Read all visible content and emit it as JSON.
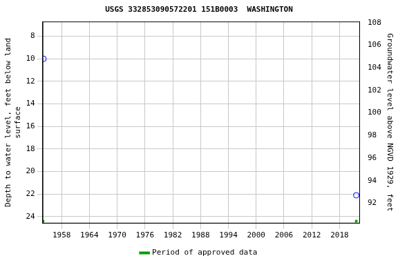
{
  "chart_data": {
    "type": "scatter",
    "title": "USGS 332853090572201 151B0003  WASHINGTON",
    "x_label": "",
    "y_label": [
      "Depth to water level, feet below land",
      "surface"
    ],
    "y2_label": "Groundwater level above NGVD 1929, feet",
    "xlim": [
      1953.9,
      2022.4
    ],
    "xticks": [
      1958,
      1964,
      1970,
      1976,
      1982,
      1988,
      1994,
      2000,
      2006,
      2012,
      2018
    ],
    "ylim": [
      6.7,
      24.6
    ],
    "yticks": [
      8,
      10,
      12,
      14,
      16,
      18,
      20,
      22,
      24
    ],
    "y2lim": [
      90.2,
      108.1
    ],
    "y2ticks": [
      92,
      94,
      96,
      98,
      100,
      102,
      104,
      106,
      108
    ],
    "grid": true,
    "legend": "bottom",
    "series": [
      {
        "color": "#0000ff",
        "marker": "open_circle",
        "x": [
          1954.1,
          2021.6
        ],
        "values": [
          10,
          22.1
        ]
      },
      {
        "name": "Period of approved data",
        "color": "#00a000",
        "marker": "square",
        "x": [
          1954.0,
          2021.6
        ],
        "values": [
          24.4,
          24.4
        ]
      }
    ]
  }
}
